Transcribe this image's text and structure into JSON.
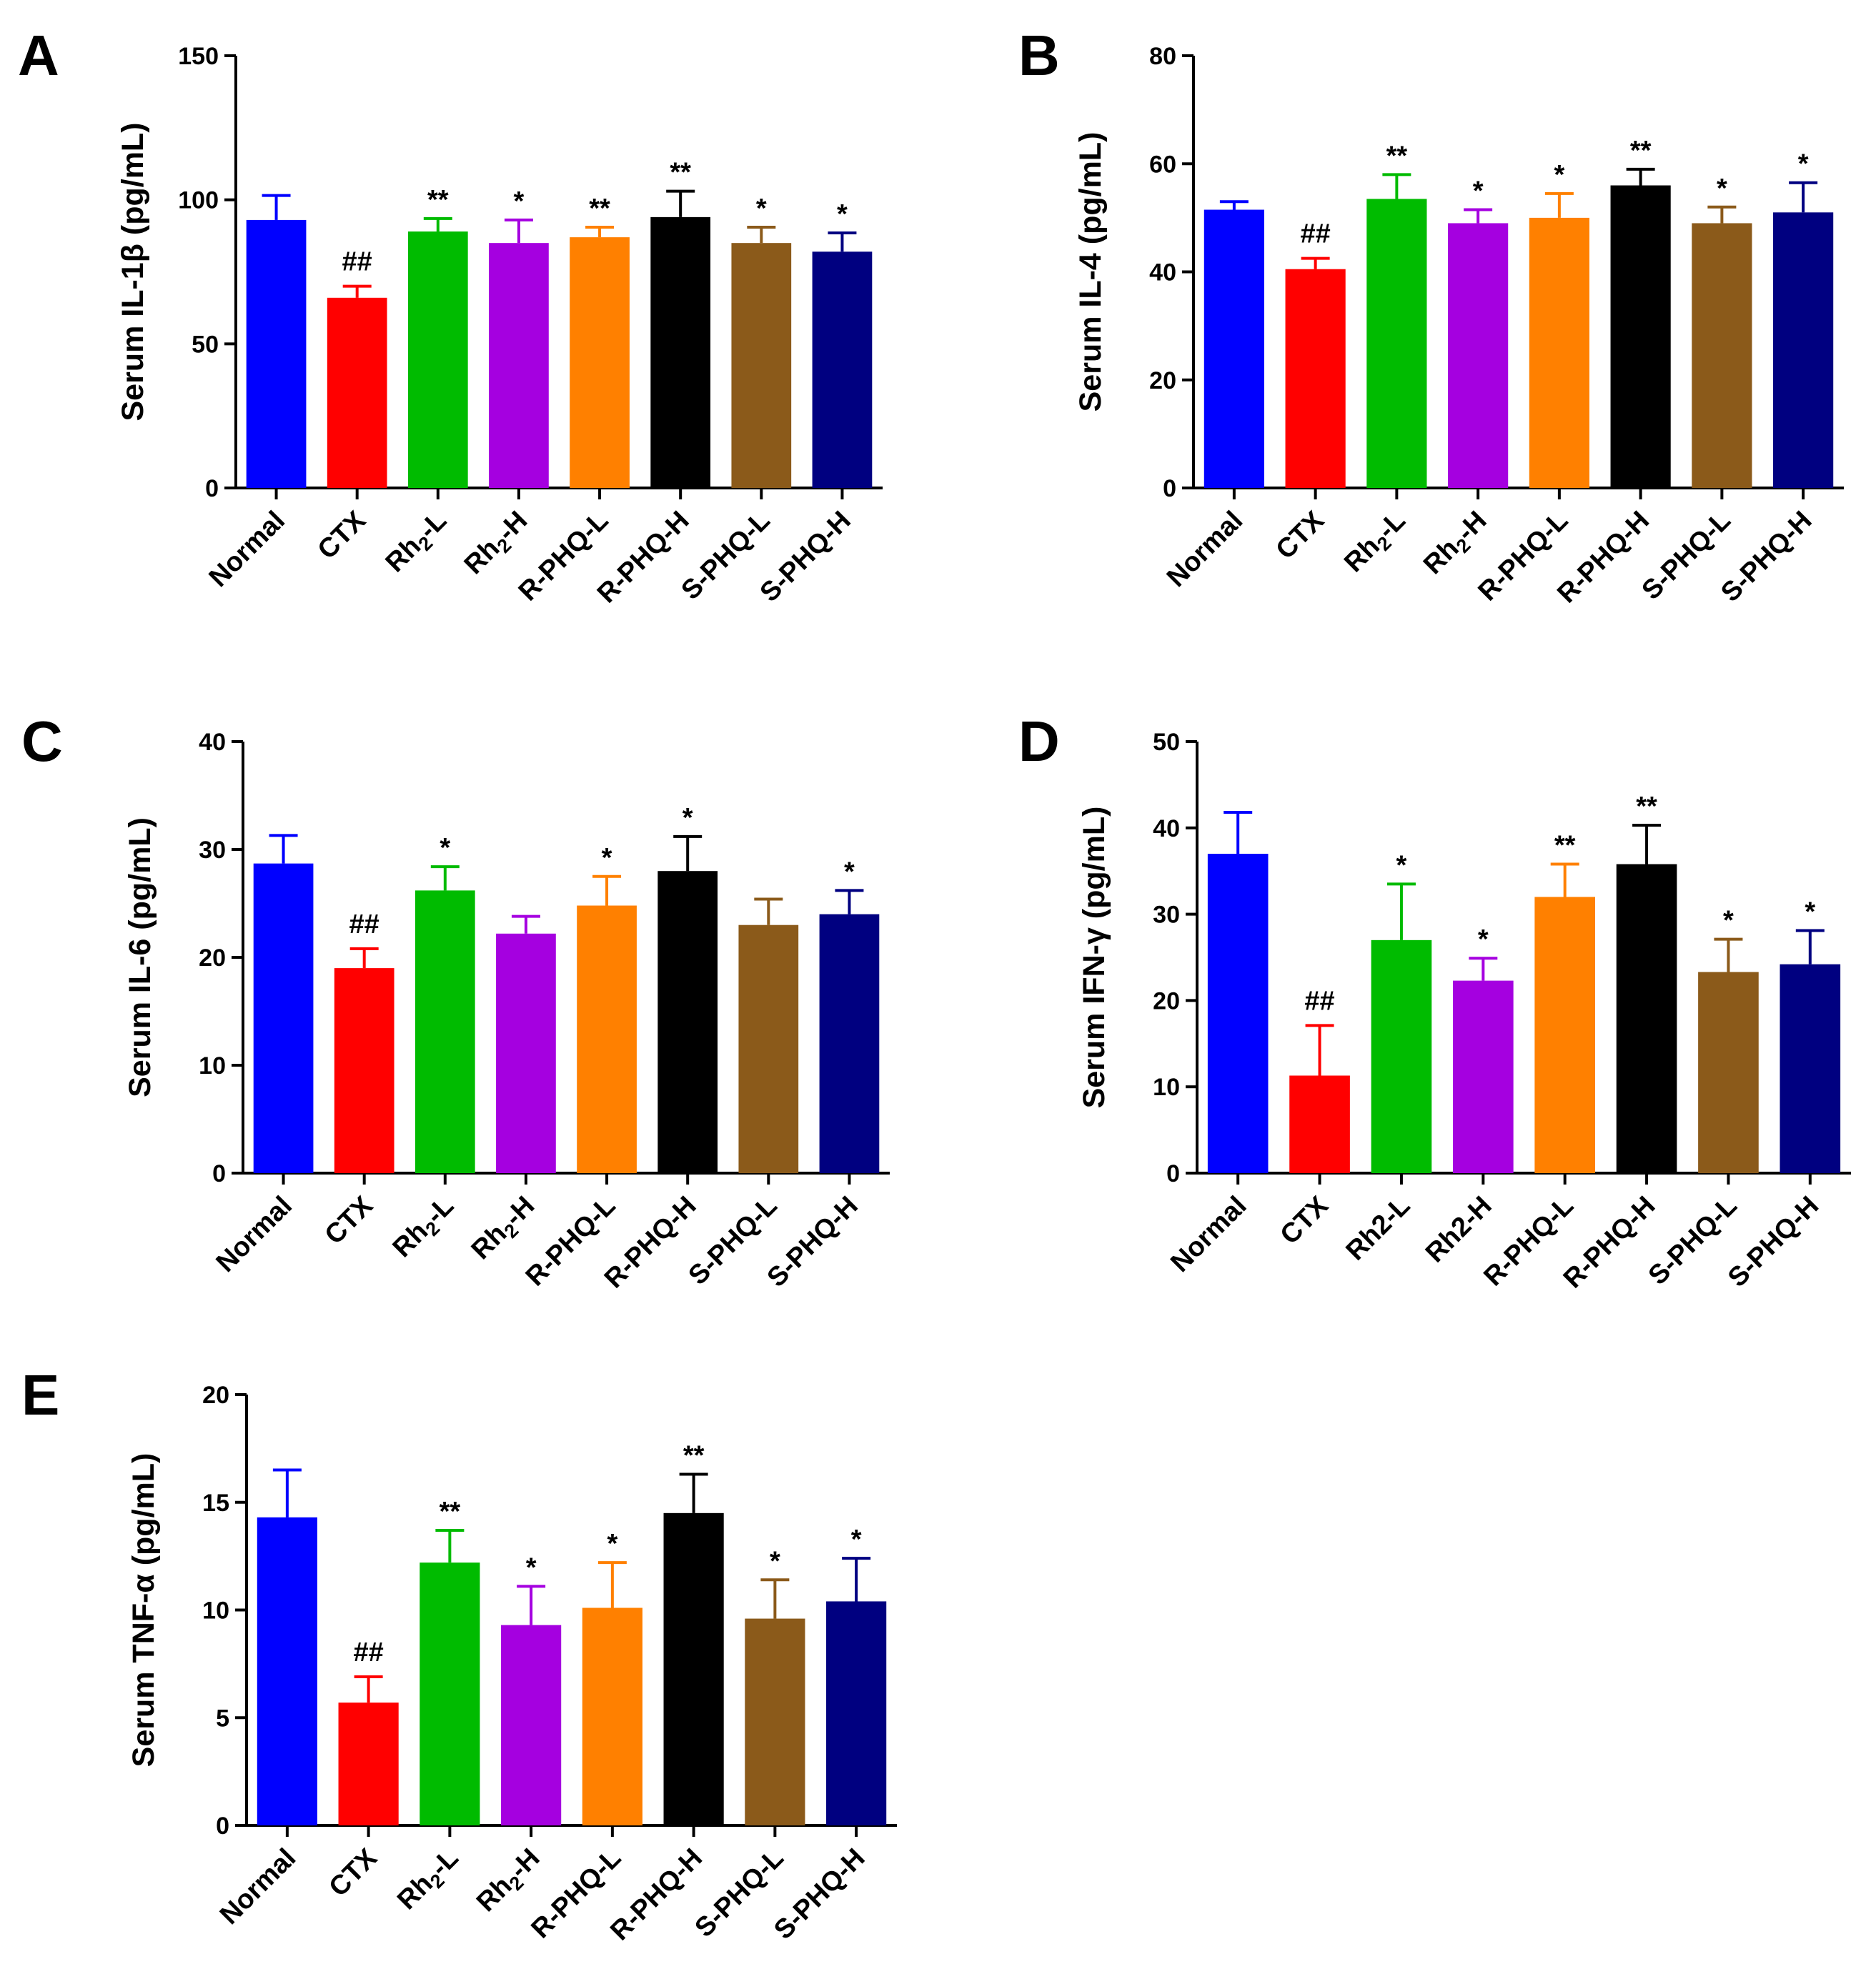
{
  "colors": {
    "Normal": "#0000ff",
    "CTX": "#ff0000",
    "Rh2-L": "#00bb00",
    "Rh2-H": "#a500e0",
    "R-PHQ-L": "#ff8000",
    "R-PHQ-H": "#000000",
    "S-PHQ-L": "#8b5a1a",
    "S-PHQ-H": "#000080"
  },
  "chart_data": [
    {
      "panel": "A",
      "type": "bar",
      "ylabel": "Serum IL-1β (pg/mL)",
      "ylim": [
        0,
        150
      ],
      "yticks": [
        0,
        50,
        100,
        150
      ],
      "categories": [
        "Normal",
        "CTX",
        "Rh2-L",
        "Rh2-H",
        "R-PHQ-L",
        "R-PHQ-H",
        "S-PHQ-L",
        "S-PHQ-H"
      ],
      "category_labels": [
        {
          "pre": "Normal",
          "sub": "",
          "post": ""
        },
        {
          "pre": "CTX",
          "sub": "",
          "post": ""
        },
        {
          "pre": "Rh",
          "sub": "2",
          "post": "-L"
        },
        {
          "pre": "Rh",
          "sub": "2",
          "post": "-H"
        },
        {
          "pre": "R-PHQ-L",
          "sub": "",
          "post": ""
        },
        {
          "pre": "R-PHQ-H",
          "sub": "",
          "post": ""
        },
        {
          "pre": "S-PHQ-L",
          "sub": "",
          "post": ""
        },
        {
          "pre": "S-PHQ-H",
          "sub": "",
          "post": ""
        }
      ],
      "values": [
        93,
        66,
        89,
        85,
        87,
        94,
        85,
        82
      ],
      "errors": [
        8.5,
        4,
        4.5,
        8,
        3.5,
        9,
        5.5,
        6.5
      ],
      "annotations": [
        "",
        "##",
        "**",
        "*",
        "**",
        "**",
        "*",
        "*"
      ]
    },
    {
      "panel": "B",
      "type": "bar",
      "ylabel": "Serum IL-4 (pg/mL)",
      "ylim": [
        0,
        80
      ],
      "yticks": [
        0,
        20,
        40,
        60,
        80
      ],
      "categories": [
        "Normal",
        "CTX",
        "Rh2-L",
        "Rh2-H",
        "R-PHQ-L",
        "R-PHQ-H",
        "S-PHQ-L",
        "S-PHQ-H"
      ],
      "category_labels": [
        {
          "pre": "Normal",
          "sub": "",
          "post": ""
        },
        {
          "pre": "CTX",
          "sub": "",
          "post": ""
        },
        {
          "pre": "Rh",
          "sub": "2",
          "post": "-L"
        },
        {
          "pre": "Rh",
          "sub": "2",
          "post": "-H"
        },
        {
          "pre": "R-PHQ-L",
          "sub": "",
          "post": ""
        },
        {
          "pre": "R-PHQ-H",
          "sub": "",
          "post": ""
        },
        {
          "pre": "S-PHQ-L",
          "sub": "",
          "post": ""
        },
        {
          "pre": "S-PHQ-H",
          "sub": "",
          "post": ""
        }
      ],
      "values": [
        51.5,
        40.5,
        53.5,
        49,
        50,
        56,
        49,
        51
      ],
      "errors": [
        1.5,
        2,
        4.5,
        2.5,
        4.5,
        3,
        3,
        5.5
      ],
      "annotations": [
        "",
        "##",
        "**",
        "*",
        "*",
        "**",
        "*",
        "*"
      ]
    },
    {
      "panel": "C",
      "type": "bar",
      "ylabel": "Serum IL-6 (pg/mL)",
      "ylim": [
        0,
        40
      ],
      "yticks": [
        0,
        10,
        20,
        30,
        40
      ],
      "categories": [
        "Normal",
        "CTX",
        "Rh2-L",
        "Rh2-H",
        "R-PHQ-L",
        "R-PHQ-H",
        "S-PHQ-L",
        "S-PHQ-H"
      ],
      "category_labels": [
        {
          "pre": "Normal",
          "sub": "",
          "post": ""
        },
        {
          "pre": "CTX",
          "sub": "",
          "post": ""
        },
        {
          "pre": "Rh",
          "sub": "2",
          "post": "-L"
        },
        {
          "pre": "Rh",
          "sub": "2",
          "post": "-H"
        },
        {
          "pre": "R-PHQ-L",
          "sub": "",
          "post": ""
        },
        {
          "pre": "R-PHQ-H",
          "sub": "",
          "post": ""
        },
        {
          "pre": "S-PHQ-L",
          "sub": "",
          "post": ""
        },
        {
          "pre": "S-PHQ-H",
          "sub": "",
          "post": ""
        }
      ],
      "values": [
        28.7,
        19,
        26.2,
        22.2,
        24.8,
        28,
        23,
        24
      ],
      "errors": [
        2.6,
        1.8,
        2.2,
        1.6,
        2.7,
        3.2,
        2.4,
        2.2
      ],
      "annotations": [
        "",
        "##",
        "*",
        "",
        "*",
        "*",
        "",
        "*"
      ]
    },
    {
      "panel": "D",
      "type": "bar",
      "ylabel": "Serum IFN-γ (pg/mL)",
      "ylim": [
        0,
        50
      ],
      "yticks": [
        0,
        10,
        20,
        30,
        40,
        50
      ],
      "categories": [
        "Normal",
        "CTX",
        "Rh2-L",
        "Rh2-H",
        "R-PHQ-L",
        "R-PHQ-H",
        "S-PHQ-L",
        "S-PHQ-H"
      ],
      "category_labels": [
        {
          "pre": "Normal",
          "sub": "",
          "post": ""
        },
        {
          "pre": "CTX",
          "sub": "",
          "post": ""
        },
        {
          "pre": "Rh2-L",
          "sub": "",
          "post": ""
        },
        {
          "pre": "Rh2-H",
          "sub": "",
          "post": ""
        },
        {
          "pre": "R-PHQ-L",
          "sub": "",
          "post": ""
        },
        {
          "pre": "R-PHQ-H",
          "sub": "",
          "post": ""
        },
        {
          "pre": "S-PHQ-L",
          "sub": "",
          "post": ""
        },
        {
          "pre": "S-PHQ-H",
          "sub": "",
          "post": ""
        }
      ],
      "values": [
        37,
        11.3,
        27,
        22.3,
        32,
        35.8,
        23.3,
        24.2
      ],
      "errors": [
        4.8,
        5.8,
        6.5,
        2.6,
        3.8,
        4.5,
        3.8,
        3.9
      ],
      "annotations": [
        "",
        "##",
        "*",
        "*",
        "**",
        "**",
        "*",
        "*"
      ]
    },
    {
      "panel": "E",
      "type": "bar",
      "ylabel": "Serum TNF-α (pg/mL)",
      "ylim": [
        0,
        20
      ],
      "yticks": [
        0,
        5,
        10,
        15,
        20
      ],
      "categories": [
        "Normal",
        "CTX",
        "Rh2-L",
        "Rh2-H",
        "R-PHQ-L",
        "R-PHQ-H",
        "S-PHQ-L",
        "S-PHQ-H"
      ],
      "category_labels": [
        {
          "pre": "Normal",
          "sub": "",
          "post": ""
        },
        {
          "pre": "CTX",
          "sub": "",
          "post": ""
        },
        {
          "pre": "Rh",
          "sub": "2",
          "post": "-L"
        },
        {
          "pre": "Rh",
          "sub": "2",
          "post": "-H"
        },
        {
          "pre": "R-PHQ-L",
          "sub": "",
          "post": ""
        },
        {
          "pre": "R-PHQ-H",
          "sub": "",
          "post": ""
        },
        {
          "pre": "S-PHQ-L",
          "sub": "",
          "post": ""
        },
        {
          "pre": "S-PHQ-H",
          "sub": "",
          "post": ""
        }
      ],
      "values": [
        14.3,
        5.7,
        12.2,
        9.3,
        10.1,
        14.5,
        9.6,
        10.4
      ],
      "errors": [
        2.2,
        1.2,
        1.5,
        1.8,
        2.1,
        1.8,
        1.8,
        2.0
      ],
      "annotations": [
        "",
        "##",
        "**",
        "*",
        "*",
        "**",
        "*",
        "*"
      ]
    }
  ]
}
